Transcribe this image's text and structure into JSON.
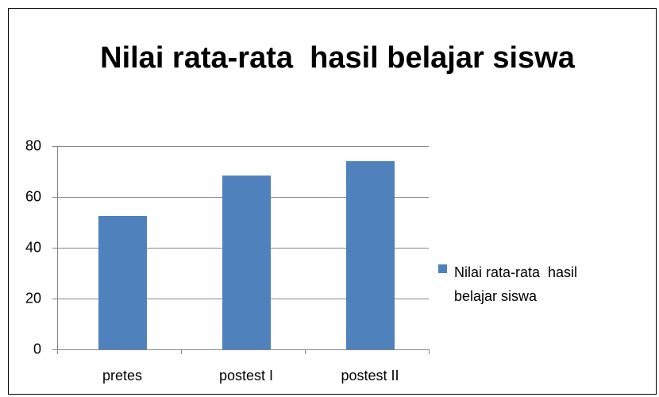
{
  "chart_data": {
    "type": "bar",
    "title": "Nilai rata-rata  hasil belajar siswa",
    "categories": [
      "pretes",
      "postest I",
      "postest II"
    ],
    "series": [
      {
        "name": "Nilai rata-rata  hasil belajar siswa",
        "color": "#4f81bd",
        "values": [
          52.5,
          68.4,
          74.1
        ]
      }
    ],
    "ylim": [
      0,
      80
    ],
    "yticks": [
      0,
      20,
      40,
      60,
      80
    ],
    "grid": true,
    "legend": "right"
  }
}
